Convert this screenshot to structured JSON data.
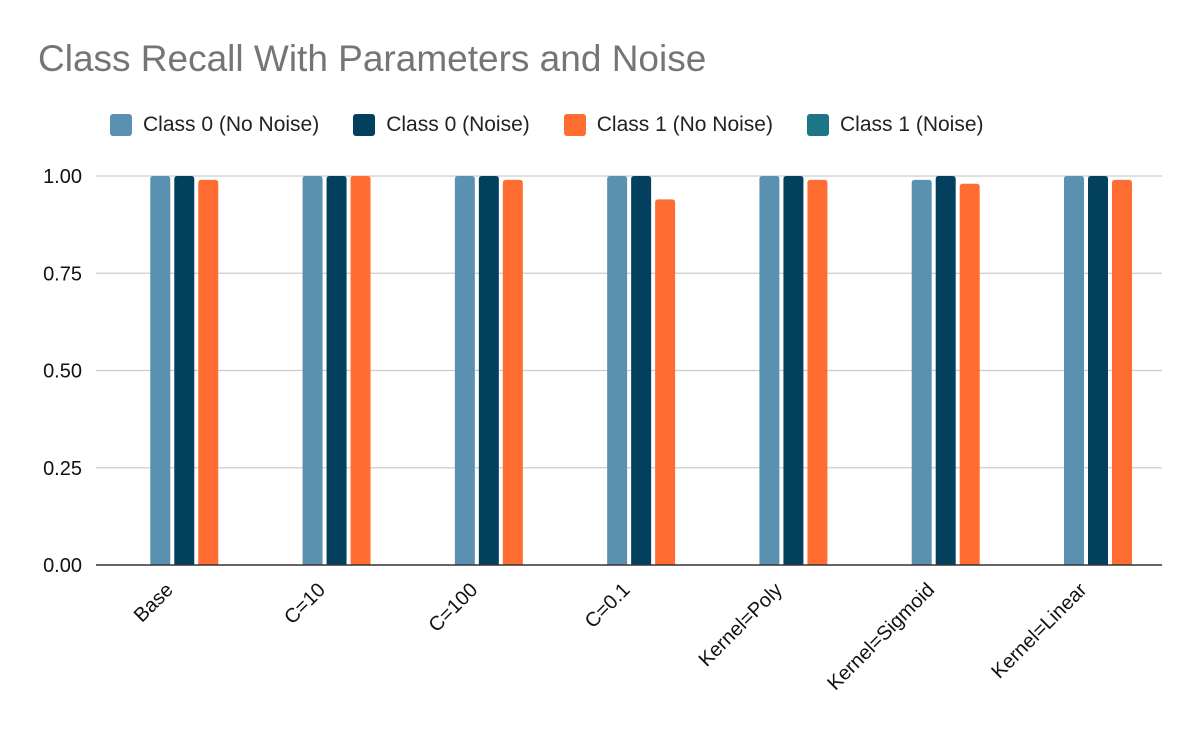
{
  "chart_data": {
    "type": "bar",
    "title": "Class Recall With Parameters and Noise",
    "xlabel": "",
    "ylabel": "",
    "categories": [
      "Base",
      "C=10",
      "C=100",
      "C=0.1",
      "Kernel=Poly",
      "Kernel=Sigmoid",
      "Kernel=Linear"
    ],
    "series": [
      {
        "name": "Class 0 (No Noise)",
        "color": "#5a91b0",
        "values": [
          1.0,
          1.0,
          1.0,
          1.0,
          1.0,
          0.99,
          1.0
        ]
      },
      {
        "name": "Class 0 (Noise)",
        "color": "#03405e",
        "values": [
          1.0,
          1.0,
          1.0,
          1.0,
          1.0,
          1.0,
          1.0
        ]
      },
      {
        "name": "Class 1 (No Noise)",
        "color": "#ff6d33",
        "values": [
          0.99,
          1.0,
          0.99,
          0.94,
          0.99,
          0.98,
          0.99
        ]
      },
      {
        "name": "Class 1 (Noise)",
        "color": "#1c7686",
        "values": [
          0,
          0,
          0,
          0,
          0,
          0,
          0
        ]
      }
    ],
    "ylim": [
      0,
      1
    ],
    "yticks": [
      "0.00",
      "0.25",
      "0.50",
      "0.75",
      "1.00"
    ],
    "grid": true,
    "legend_position": "top"
  }
}
